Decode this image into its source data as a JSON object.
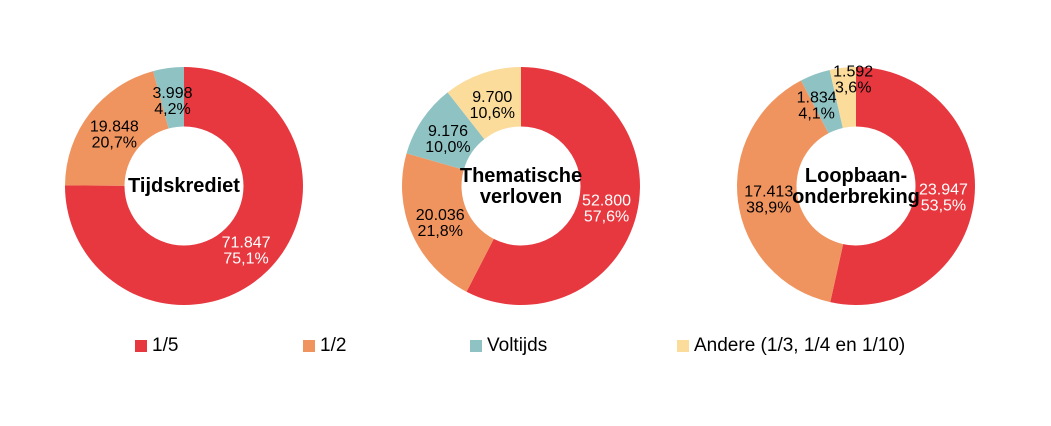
{
  "page": {
    "background": "#FFFFFF"
  },
  "palette": {
    "red": "#E7383F",
    "orange": "#F0945F",
    "teal": "#8FC2C3",
    "yellow": "#FBDC9B"
  },
  "legend": {
    "position": "bottom",
    "items": [
      {
        "label": "1/5",
        "color": "#E7383F"
      },
      {
        "label": "1/2",
        "color": "#F0945F"
      },
      {
        "label": "Voltijds",
        "color": "#8FC2C3"
      },
      {
        "label": "Andere (1/3, 1/4 en 1/10)",
        "color": "#FBDC9B"
      }
    ]
  },
  "chart_data": [
    {
      "type": "pie",
      "subtype": "donut",
      "title": "Tijdskrediet",
      "title_lines": [
        "Tijdskrediet"
      ],
      "start_angle_deg": 0,
      "direction": "clockwise",
      "slices": [
        {
          "category": "1/5",
          "value": 71847,
          "value_label": "71.847",
          "pct": 75.1,
          "pct_label": "75,1%",
          "color": "#E7383F",
          "label_color": "#FFFFFF"
        },
        {
          "category": "1/2",
          "value": 19848,
          "value_label": "19.848",
          "pct": 20.7,
          "pct_label": "20,7%",
          "color": "#F0945F",
          "label_color": "#000000"
        },
        {
          "category": "Voltijds",
          "value": 3998,
          "value_label": "3.998",
          "pct": 4.2,
          "pct_label": "4,2%",
          "color": "#8FC2C3",
          "label_color": "#000000"
        }
      ]
    },
    {
      "type": "pie",
      "subtype": "donut",
      "title": "Thematische verloven",
      "title_lines": [
        "Thematische",
        "verloven"
      ],
      "start_angle_deg": 0,
      "direction": "clockwise",
      "slices": [
        {
          "category": "1/5",
          "value": 52800,
          "value_label": "52.800",
          "pct": 57.6,
          "pct_label": "57,6%",
          "color": "#E7383F",
          "label_color": "#FFFFFF"
        },
        {
          "category": "1/2",
          "value": 20036,
          "value_label": "20.036",
          "pct": 21.8,
          "pct_label": "21,8%",
          "color": "#F0945F",
          "label_color": "#000000"
        },
        {
          "category": "Voltijds",
          "value": 9176,
          "value_label": "9.176",
          "pct": 10.0,
          "pct_label": "10,0%",
          "color": "#8FC2C3",
          "label_color": "#000000"
        },
        {
          "category": "Andere (1/3, 1/4 en 1/10)",
          "value": 9700,
          "value_label": "9.700",
          "pct": 10.6,
          "pct_label": "10,6%",
          "color": "#FBDC9B",
          "label_color": "#000000"
        }
      ]
    },
    {
      "type": "pie",
      "subtype": "donut",
      "title": "Loopbaan-onderbreking",
      "title_lines": [
        "Loopbaan-",
        "onderbreking"
      ],
      "start_angle_deg": 0,
      "direction": "clockwise",
      "slices": [
        {
          "category": "1/5",
          "value": 23947,
          "value_label": "23.947",
          "pct": 53.5,
          "pct_label": "53,5%",
          "color": "#E7383F",
          "label_color": "#FFFFFF"
        },
        {
          "category": "1/2",
          "value": 17413,
          "value_label": "17.413",
          "pct": 38.9,
          "pct_label": "38,9%",
          "color": "#F0945F",
          "label_color": "#000000"
        },
        {
          "category": "Voltijds",
          "value": 1834,
          "value_label": "1.834",
          "pct": 4.1,
          "pct_label": "4,1%",
          "color": "#8FC2C3",
          "label_color": "#000000",
          "label_offset": [
            -9,
            0
          ]
        },
        {
          "category": "Andere (1/3, 1/4 en 1/10)",
          "value": 1592,
          "value_label": "1.592",
          "pct": 3.6,
          "pct_label": "3,6%",
          "color": "#FBDC9B",
          "label_color": "#000000",
          "label_offset": [
            7,
            -21
          ]
        }
      ]
    }
  ]
}
